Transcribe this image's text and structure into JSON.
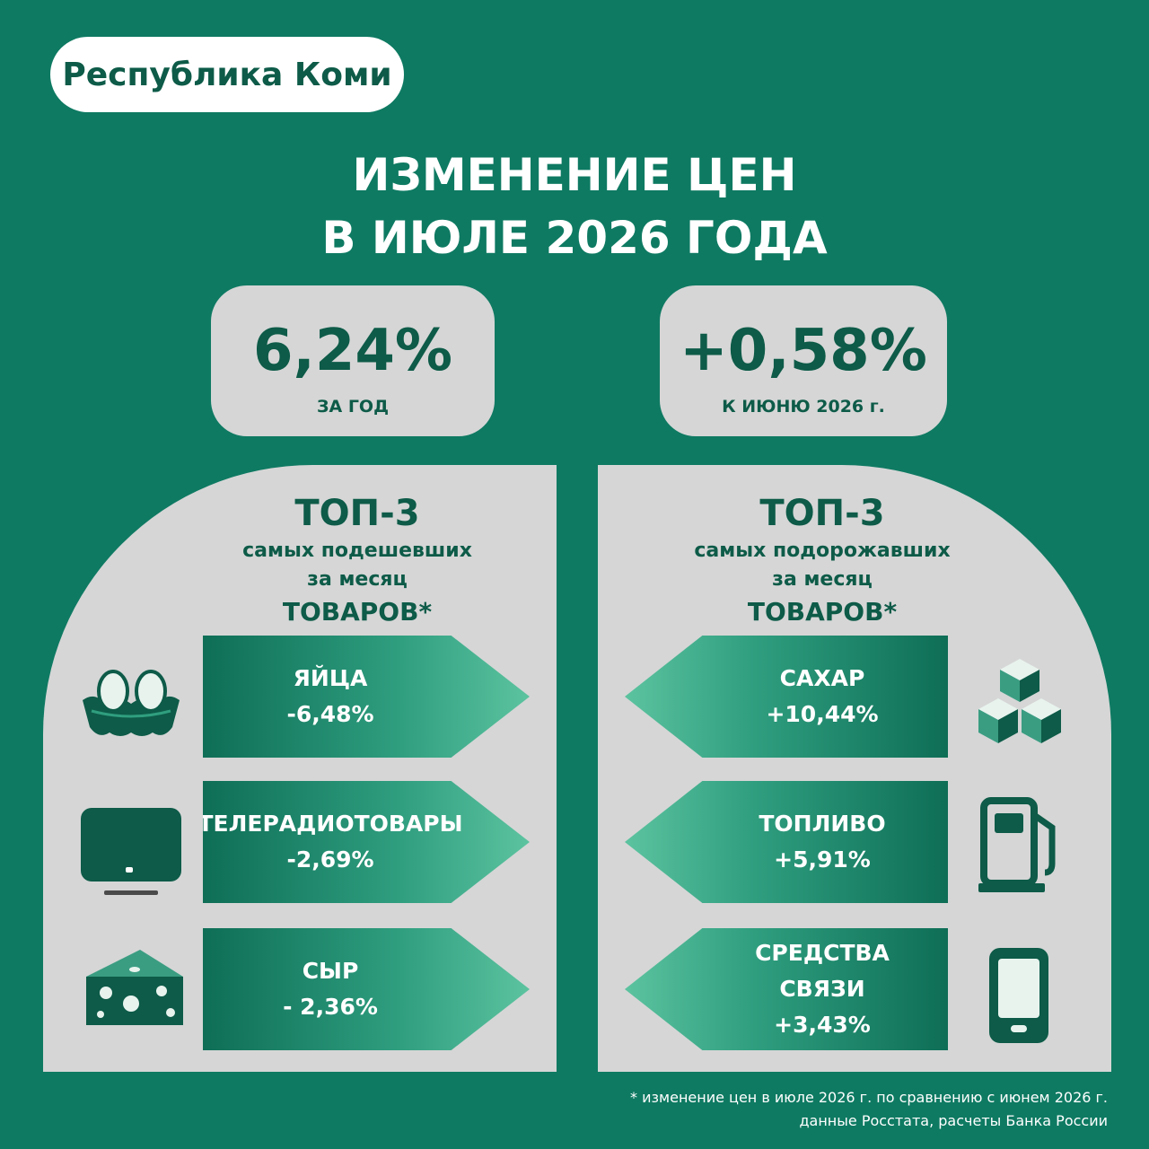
{
  "region": "Республика Коми",
  "title": {
    "line1": "ИЗМЕНЕНИЕ ЦЕН",
    "line2": "В ИЮЛЕ 2026 ГОДА"
  },
  "stats": {
    "yearly": {
      "value": "6,24%",
      "caption": "ЗА ГОД"
    },
    "monthly": {
      "value": "+0,58%",
      "caption": "К ИЮНЮ 2026 г."
    }
  },
  "cheaper": {
    "heading": "ТОП-3",
    "line1": "самых подешевших",
    "line2": "за месяц",
    "line3": "ТОВАРОВ*",
    "items": [
      {
        "name": "ЯЙЦА",
        "change": "-6,48%",
        "icon": "eggs-icon"
      },
      {
        "name": "ТЕЛЕРАДИОТОВАРЫ",
        "change": "-2,69%",
        "icon": "tv-icon"
      },
      {
        "name": "СЫР",
        "change": "- 2,36%",
        "icon": "cheese-icon"
      }
    ]
  },
  "pricier": {
    "heading": "ТОП-3",
    "line1": "самых подорожавших",
    "line2": "за месяц",
    "line3": "ТОВАРОВ*",
    "items": [
      {
        "name": "САХАР",
        "change": "+10,44%",
        "icon": "sugar-cubes-icon"
      },
      {
        "name": "ТОПЛИВО",
        "change": "+5,91%",
        "icon": "fuel-pump-icon"
      },
      {
        "name": "СРЕДСТВА СВЯЗИ",
        "change": "+3,43%",
        "icon": "smartphone-icon"
      }
    ]
  },
  "footnote": {
    "line1": "* изменение цен в июле 2026 г. по сравнению  с июнем 2026 г.",
    "line2": "данные Росстата, расчеты Банка России"
  },
  "colors": {
    "background": "#0e7a62",
    "panel": "#d6d6d6",
    "dark_green": "#0d5b48",
    "light_green": "#5cc39f"
  }
}
